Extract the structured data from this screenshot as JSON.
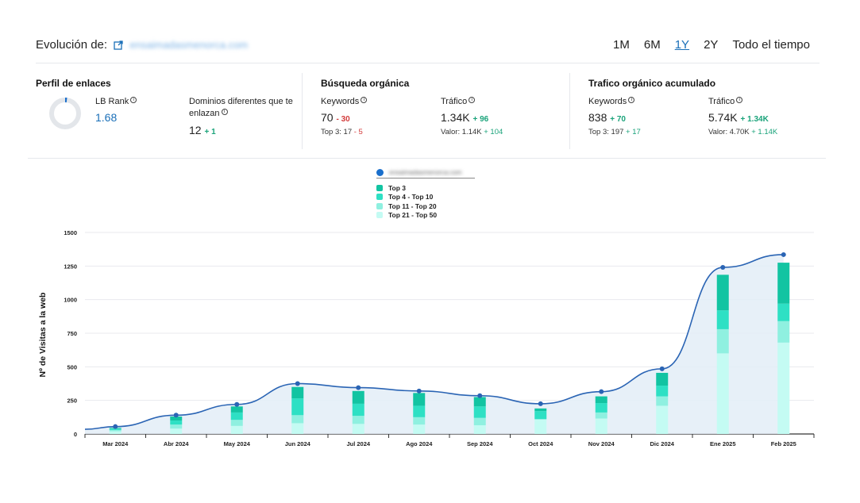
{
  "header": {
    "title": "Evolución de:",
    "domain": "ensaimadasmenorca.com",
    "periods": [
      "1M",
      "6M",
      "1Y",
      "2Y",
      "Todo el tiempo"
    ],
    "active_period": "1Y"
  },
  "links": {
    "title": "Perfil de enlaces",
    "lb_rank_label": "LB Rank",
    "lb_rank_value": "1.68",
    "lb_rank_fraction": 0.02,
    "domains_label_1": "Dominios diferentes que te",
    "domains_label_2": "enlazan",
    "domains_value": "12",
    "domains_delta": "+ 1"
  },
  "organic": {
    "title": "Búsqueda orgánica",
    "keywords_label": "Keywords",
    "keywords_value": "70",
    "keywords_delta": "- 30",
    "top3_label": "Top 3:",
    "top3_value": "17",
    "top3_delta": "- 5",
    "traffic_label": "Tráfico",
    "traffic_value": "1.34K",
    "traffic_delta": "+ 96",
    "valor_label": "Valor:",
    "valor_value": "1.14K",
    "valor_delta": "+ 104"
  },
  "accumulated": {
    "title": "Trafico orgánico acumulado",
    "keywords_label": "Keywords",
    "keywords_value": "838",
    "keywords_delta": "+ 70",
    "top3_label": "Top 3:",
    "top3_value": "197",
    "top3_delta": "+ 17",
    "traffic_label": "Tráfico",
    "traffic_value": "5.74K",
    "traffic_delta": "+ 1.34K",
    "valor_label": "Valor:",
    "valor_value": "4.70K",
    "valor_delta": "+ 1.14K"
  },
  "colors": {
    "line": "#2a64b4",
    "area": "#e3edf7",
    "top3": "#12c4a2",
    "top4_10": "#2ee0c4",
    "top11_20": "#8ff0e0",
    "top21_50": "#c4fbf3"
  },
  "chart_data": {
    "type": "bar",
    "ylabel": "Nº de Visitas a la web",
    "ylim": [
      0,
      1500
    ],
    "yticks": [
      0,
      250,
      500,
      750,
      1000,
      1250,
      1500
    ],
    "categories": [
      "Mar 2024",
      "Abr 2024",
      "May 2024",
      "Jun 2024",
      "Jul 2024",
      "Ago 2024",
      "Sep 2024",
      "Oct 2024",
      "Nov 2024",
      "Dic 2024",
      "Ene 2025",
      "Feb 2025"
    ],
    "legend": [
      "ensaimadasmenorca.com",
      "Top 3",
      "Top 4 - Top 10",
      "Top 11 - Top 20",
      "Top 21 - Top 50"
    ],
    "line": {
      "name": "ensaimadasmenorca.com",
      "values": [
        55,
        140,
        220,
        375,
        345,
        320,
        285,
        225,
        315,
        485,
        1240,
        1335
      ]
    },
    "series": [
      {
        "name": "Top 21 - Top 50",
        "values": [
          20,
          40,
          60,
          80,
          75,
          70,
          65,
          110,
          115,
          210,
          600,
          680
        ]
      },
      {
        "name": "Top 11 - Top 20",
        "values": [
          10,
          30,
          45,
          60,
          60,
          55,
          55,
          0,
          45,
          70,
          180,
          160
        ]
      },
      {
        "name": "Top 4 - Top 10",
        "values": [
          10,
          30,
          55,
          125,
          90,
          85,
          85,
          60,
          70,
          80,
          140,
          130
        ]
      },
      {
        "name": "Top 3",
        "values": [
          5,
          30,
          45,
          85,
          95,
          95,
          70,
          20,
          50,
          95,
          265,
          305
        ]
      }
    ]
  }
}
